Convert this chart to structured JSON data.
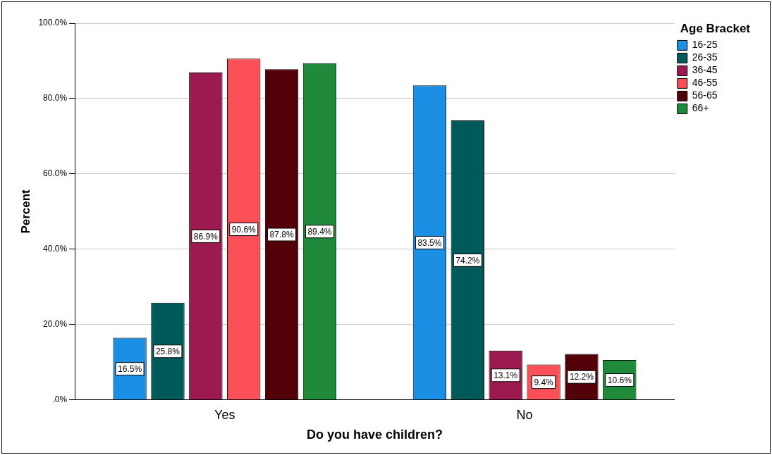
{
  "chart_data": {
    "type": "bar",
    "xlabel": "Do you have children?",
    "ylabel": "Percent",
    "legend_title": "Age Bracket",
    "legend": "top right",
    "grid": "y",
    "categories": [
      "Yes",
      "No"
    ],
    "ylim": [
      0,
      100
    ],
    "yticks": [
      {
        "value": 0,
        "label": ".0%"
      },
      {
        "value": 20,
        "label": "20.0%"
      },
      {
        "value": 40,
        "label": "40.0%"
      },
      {
        "value": 60,
        "label": "60.0%"
      },
      {
        "value": 80,
        "label": "80.0%"
      },
      {
        "value": 100,
        "label": "100.0%"
      }
    ],
    "series": [
      {
        "name": "16-25",
        "color": "#1a8fe3",
        "values": [
          16.5,
          83.5
        ],
        "value_labels": [
          "16.5%",
          "83.5%"
        ]
      },
      {
        "name": "26-35",
        "color": "#005a5a",
        "values": [
          25.8,
          74.2
        ],
        "value_labels": [
          "25.8%",
          "74.2%"
        ]
      },
      {
        "name": "36-45",
        "color": "#9c1a4f",
        "values": [
          86.9,
          13.1
        ],
        "value_labels": [
          "86.9%",
          "13.1%"
        ]
      },
      {
        "name": "46-55",
        "color": "#fc5058",
        "values": [
          90.6,
          9.4
        ],
        "value_labels": [
          "90.6%",
          "9.4%"
        ]
      },
      {
        "name": "56-65",
        "color": "#540009",
        "values": [
          87.8,
          12.2
        ],
        "value_labels": [
          "87.8%",
          "12.2%"
        ]
      },
      {
        "name": "66+",
        "color": "#1f8a3a",
        "values": [
          89.4,
          10.6
        ],
        "value_labels": [
          "89.4%",
          "10.6%"
        ]
      }
    ]
  }
}
